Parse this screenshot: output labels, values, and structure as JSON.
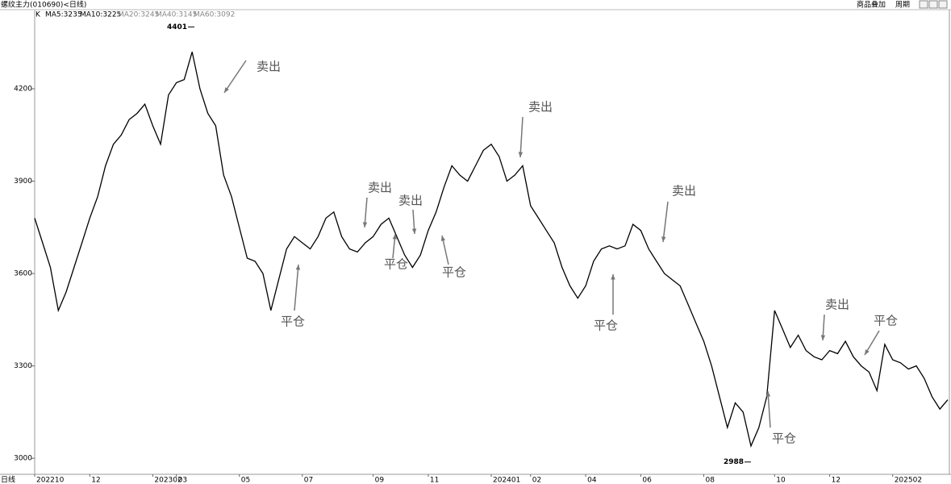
{
  "chart_data": {
    "type": "line",
    "title": "螺纹主力(010690)<日线)",
    "header": {
      "kind": "K",
      "ma": [
        "MA5:3235",
        "MA10:3225",
        "MA20:3245",
        "MA40:3145",
        "MA60:3092"
      ]
    },
    "toolbar": [
      "商品叠加",
      "周期"
    ],
    "period_label": "日线",
    "categories": [
      "202210",
      null,
      null,
      null,
      null,
      null,
      null,
      "12",
      null,
      null,
      null,
      null,
      null,
      null,
      null,
      "202302",
      null,
      null,
      "03",
      null,
      null,
      null,
      null,
      null,
      null,
      null,
      "05",
      null,
      null,
      null,
      null,
      null,
      null,
      null,
      "07",
      null,
      null,
      null,
      null,
      null,
      null,
      null,
      null,
      "09",
      null,
      null,
      null,
      null,
      null,
      null,
      "11",
      null,
      null,
      null,
      null,
      null,
      null,
      null,
      "202401",
      null,
      null,
      null,
      null,
      "02",
      null,
      null,
      null,
      null,
      null,
      null,
      "04",
      null,
      null,
      null,
      null,
      null,
      null,
      "06",
      null,
      null,
      null,
      null,
      null,
      null,
      null,
      "08",
      null,
      null,
      null,
      null,
      null,
      null,
      null,
      null,
      "10",
      null,
      null,
      null,
      null,
      null,
      null,
      "12",
      null,
      null,
      null,
      null,
      null,
      null,
      null,
      "202502",
      null,
      null,
      null,
      null,
      null,
      null,
      null
    ],
    "series": [
      {
        "name": "K",
        "color": "#000000",
        "values": [
          3780,
          3700,
          3620,
          3480,
          3540,
          3620,
          3700,
          3780,
          3850,
          3950,
          4020,
          4050,
          4100,
          4120,
          4150,
          4080,
          4020,
          4180,
          4220,
          4230,
          4320,
          4200,
          4120,
          4080,
          3920,
          3850,
          3750,
          3650,
          3640,
          3600,
          3480,
          3580,
          3680,
          3720,
          3700,
          3680,
          3720,
          3780,
          3800,
          3720,
          3680,
          3670,
          3700,
          3720,
          3760,
          3780,
          3720,
          3660,
          3620,
          3660,
          3740,
          3800,
          3880,
          3950,
          3920,
          3900,
          3950,
          4000,
          4020,
          3980,
          3900,
          3920,
          3950,
          3820,
          3780,
          3740,
          3700,
          3620,
          3560,
          3520,
          3560,
          3640,
          3680,
          3690,
          3680,
          3690,
          3760,
          3740,
          3680,
          3640,
          3600,
          3580,
          3560,
          3500,
          3440,
          3380,
          3300,
          3200,
          3100,
          3180,
          3150,
          3040,
          3100,
          3200,
          3480,
          3420,
          3360,
          3400,
          3350,
          3330,
          3320,
          3350,
          3340,
          3380,
          3330,
          3300,
          3280,
          3220,
          3370,
          3320,
          3310,
          3290,
          3300,
          3260,
          3200,
          3160,
          3190
        ]
      }
    ],
    "high": 4401,
    "low": 2988,
    "annotations": [
      "卖出",
      "卖出",
      "卖出",
      "卖出",
      "卖出",
      "卖出",
      "平仓",
      "平仓",
      "平仓",
      "平仓",
      "平仓",
      "平仓"
    ],
    "ylim": [
      2948,
      4457
    ],
    "yticks": [
      3000,
      3300,
      3600,
      3900,
      4200
    ],
    "grid": false
  }
}
